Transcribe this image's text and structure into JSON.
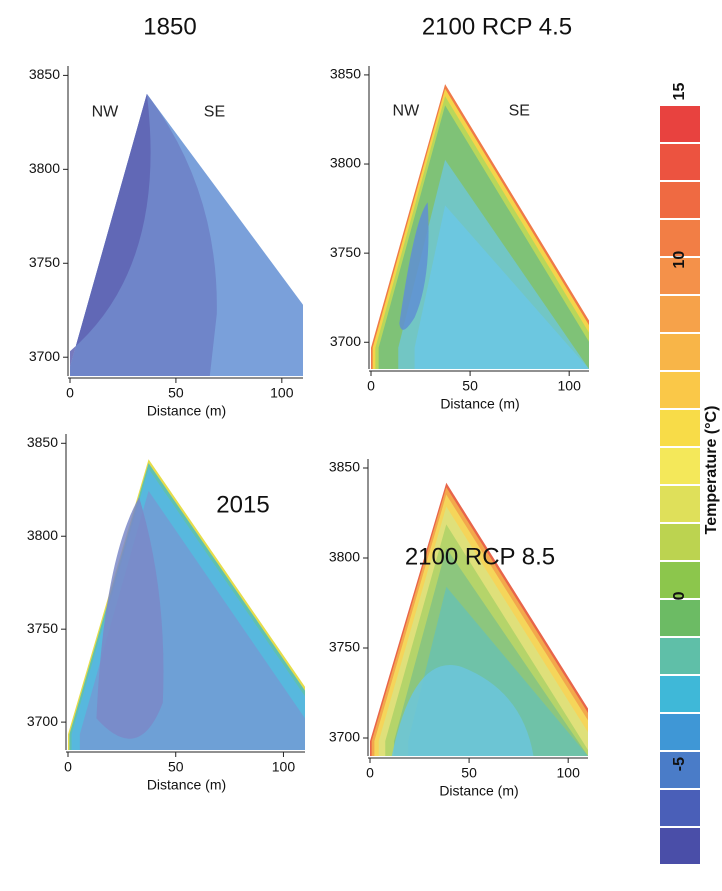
{
  "chart_data": [
    {
      "type": "contour",
      "title": "1850",
      "xlabel": "Distance (m)",
      "xlim": [
        0,
        110
      ],
      "xticks": [
        0,
        50,
        100
      ],
      "ylim": [
        3690,
        3855
      ],
      "yticks": [
        3700,
        3750,
        3800,
        3850
      ],
      "annotations": [
        "NW",
        "SE"
      ],
      "colors": [
        "#7aa0da",
        "#6d80c6",
        "#5f63b3"
      ]
    },
    {
      "type": "contour",
      "title": "2100 RCP 4.5",
      "xlabel": "Distance (m)",
      "xlim": [
        0,
        110
      ],
      "xticks": [
        0,
        50,
        100
      ],
      "ylim": [
        3685,
        3855
      ],
      "yticks": [
        3700,
        3750,
        3800,
        3850
      ],
      "annotations": [
        "NW",
        "SE"
      ],
      "colors": [
        "#ef7a48",
        "#f5d44a",
        "#b9d75a",
        "#7fc277",
        "#72c6c4",
        "#6cc7e0",
        "#5f8fd4"
      ]
    },
    {
      "type": "contour",
      "title": "2015",
      "xlabel": "Distance (m)",
      "xlim": [
        0,
        110
      ],
      "xticks": [
        0,
        50,
        100
      ],
      "ylim": [
        3685,
        3855
      ],
      "yticks": [
        3700,
        3750,
        3800,
        3850
      ],
      "colors": [
        "#e6dc4a",
        "#5fc0b0",
        "#57b8de",
        "#6ea0d6",
        "#7b88c8"
      ]
    },
    {
      "type": "contour",
      "title": "2100 RCP 8.5",
      "xlabel": "Distance (m)",
      "xlim": [
        0,
        110
      ],
      "xticks": [
        0,
        50,
        100
      ],
      "ylim": [
        3690,
        3855
      ],
      "yticks": [
        3700,
        3750,
        3800,
        3850
      ],
      "colors": [
        "#e8654a",
        "#f3a74c",
        "#f5d55a",
        "#dfe07a",
        "#b5d46a",
        "#8cc67e",
        "#6fc2a8",
        "#6cc6dc"
      ]
    }
  ],
  "colorbar": {
    "label": "Temperature (°C)",
    "lim": [
      -8,
      14.6
    ],
    "ticks": [
      -5,
      0,
      10,
      15
    ],
    "colors": [
      "#e8423f",
      "#ec5340",
      "#ef6a42",
      "#f27e45",
      "#f4914a",
      "#f6a24a",
      "#f8b548",
      "#fac848",
      "#f8dc48",
      "#f4e85a",
      "#dfe05a",
      "#bcd350",
      "#8cc64c",
      "#6cbb64",
      "#5fbfa8",
      "#3fb8d8",
      "#3f97d6",
      "#4a7cc8",
      "#4a5fb8",
      "#4a4ea8"
    ]
  }
}
